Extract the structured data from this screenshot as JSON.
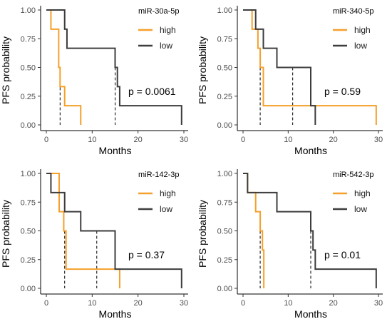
{
  "chart_data": [
    {
      "type": "line",
      "title": "miR-30a-5p",
      "xlabel": "Months",
      "ylabel": "PFS probability",
      "xlim": [
        0,
        30
      ],
      "ylim": [
        0,
        1
      ],
      "xticks": [
        0,
        10,
        20,
        30
      ],
      "yticks": [
        0.0,
        0.25,
        0.5,
        0.75,
        1.0
      ],
      "xtick_labels": [
        "0",
        "10",
        "20",
        "30"
      ],
      "ytick_labels": [
        "0.00",
        "0.25",
        "0.50",
        "0.75",
        "1.00"
      ],
      "legend_position": "top-right",
      "p_value_text": "p = 0.0061",
      "series": [
        {
          "name": "high",
          "color": "#f5a02a",
          "x": [
            0,
            1.0,
            2.7,
            3.0,
            4.0,
            7.5
          ],
          "y": [
            1.0,
            0.833,
            0.5,
            0.333,
            0.167,
            0.0
          ],
          "median": 3.0
        },
        {
          "name": "low",
          "color": "#3d3d3d",
          "x": [
            0,
            4.0,
            4.5,
            15.0,
            15.5,
            16.0,
            29.5
          ],
          "y": [
            1.0,
            0.833,
            0.667,
            0.5,
            0.333,
            0.167,
            0.0
          ],
          "median": 15.0
        }
      ]
    },
    {
      "type": "line",
      "title": "miR-340-5p",
      "xlabel": "Months",
      "ylabel": "PFS probability",
      "xlim": [
        0,
        30
      ],
      "ylim": [
        0,
        1
      ],
      "xticks": [
        0,
        10,
        20,
        30
      ],
      "yticks": [
        0.0,
        0.25,
        0.5,
        0.75,
        1.0
      ],
      "xtick_labels": [
        "0",
        "10",
        "20",
        "30"
      ],
      "ytick_labels": [
        "0.00",
        "0.25",
        "0.50",
        "0.75",
        "1.00"
      ],
      "legend_position": "top-right",
      "p_value_text": "p = 0.59",
      "series": [
        {
          "name": "high",
          "color": "#f5a02a",
          "x": [
            0,
            0.5,
            2.0,
            3.3,
            3.8,
            4.5,
            29.5
          ],
          "y": [
            1.0,
            1.0,
            0.833,
            0.667,
            0.5,
            0.167,
            0.0
          ],
          "median": 3.8
        },
        {
          "name": "low",
          "color": "#3d3d3d",
          "x": [
            0,
            2.8,
            4.5,
            7.5,
            15.0,
            16.0
          ],
          "y": [
            1.0,
            0.833,
            0.667,
            0.5,
            0.167,
            0.0
          ],
          "median": 11.0
        }
      ]
    },
    {
      "type": "line",
      "title": "miR-142-3p",
      "xlabel": "Months",
      "ylabel": "PFS probability",
      "xlim": [
        0,
        30
      ],
      "ylim": [
        0,
        1
      ],
      "xticks": [
        0,
        10,
        20,
        30
      ],
      "yticks": [
        0.0,
        0.25,
        0.5,
        0.75,
        1.0
      ],
      "xtick_labels": [
        "0",
        "10",
        "20",
        "30"
      ],
      "ytick_labels": [
        "0.00",
        "0.25",
        "0.50",
        "0.75",
        "1.00"
      ],
      "legend_position": "top-right",
      "p_value_text": "p = 0.37",
      "series": [
        {
          "name": "high",
          "color": "#f5a02a",
          "x": [
            0,
            2.8,
            3.8,
            4.3,
            16.0
          ],
          "y": [
            1.0,
            0.667,
            0.5,
            0.167,
            0.0
          ],
          "median": 4.0
        },
        {
          "name": "low",
          "color": "#3d3d3d",
          "x": [
            0,
            1.0,
            4.0,
            7.5,
            15.0,
            29.5
          ],
          "y": [
            1.0,
            0.833,
            0.667,
            0.5,
            0.167,
            0.0
          ],
          "median": 11.0
        }
      ]
    },
    {
      "type": "line",
      "title": "miR-542-3p",
      "xlabel": "Months",
      "ylabel": "PFS probability",
      "xlim": [
        0,
        30
      ],
      "ylim": [
        0,
        1
      ],
      "xticks": [
        0,
        10,
        20,
        30
      ],
      "yticks": [
        0.0,
        0.25,
        0.5,
        0.75,
        1.0
      ],
      "xtick_labels": [
        "0",
        "10",
        "20",
        "30"
      ],
      "ytick_labels": [
        "0.00",
        "0.25",
        "0.50",
        "0.75",
        "1.00"
      ],
      "legend_position": "top-right",
      "p_value_text": "p = 0.01",
      "series": [
        {
          "name": "high",
          "color": "#f5a02a",
          "x": [
            0,
            1.0,
            2.8,
            3.8,
            4.3,
            4.6
          ],
          "y": [
            1.0,
            0.833,
            0.667,
            0.5,
            0.333,
            0.0
          ],
          "median": 3.8
        },
        {
          "name": "low",
          "color": "#3d3d3d",
          "x": [
            0,
            1.0,
            7.5,
            15.0,
            15.5,
            16.0,
            29.5
          ],
          "y": [
            1.0,
            0.833,
            0.667,
            0.5,
            0.333,
            0.167,
            0.0
          ],
          "median": 15.0
        }
      ]
    }
  ]
}
